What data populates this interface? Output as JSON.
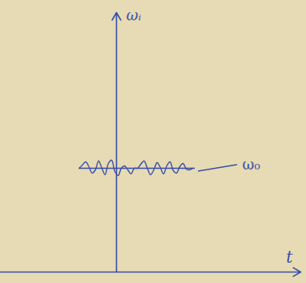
{
  "chart_data": {
    "type": "line",
    "x_label": "t",
    "y_label": "ωᵢ",
    "x": [
      -46,
      -42,
      -38,
      -34,
      -30,
      -26,
      -22,
      -18,
      -14,
      -10,
      -6,
      -2,
      2,
      6,
      10,
      14,
      18,
      22,
      26,
      30,
      34,
      38,
      42,
      46,
      50,
      54,
      58,
      62,
      66,
      70,
      74,
      78,
      82,
      86,
      90,
      94
    ],
    "values": [
      128,
      132,
      136,
      130,
      122,
      126,
      137,
      128,
      120,
      134,
      138,
      124,
      119,
      128,
      131,
      126,
      121,
      128,
      128,
      133,
      137,
      128,
      120,
      126,
      135,
      129,
      121,
      131,
      136,
      125,
      122,
      130,
      134,
      127,
      126,
      128
    ],
    "color": "#3b4fa8",
    "xlim": [
      -143,
      227
    ],
    "ylim": [
      0,
      320
    ],
    "xticks": [
      0
    ],
    "yticks": [
      0
    ],
    "tick_labels": false,
    "annotations": [
      {
        "text": "ω₀",
        "y": 128,
        "x": [
          -46,
          97
        ]
      }
    ]
  }
}
